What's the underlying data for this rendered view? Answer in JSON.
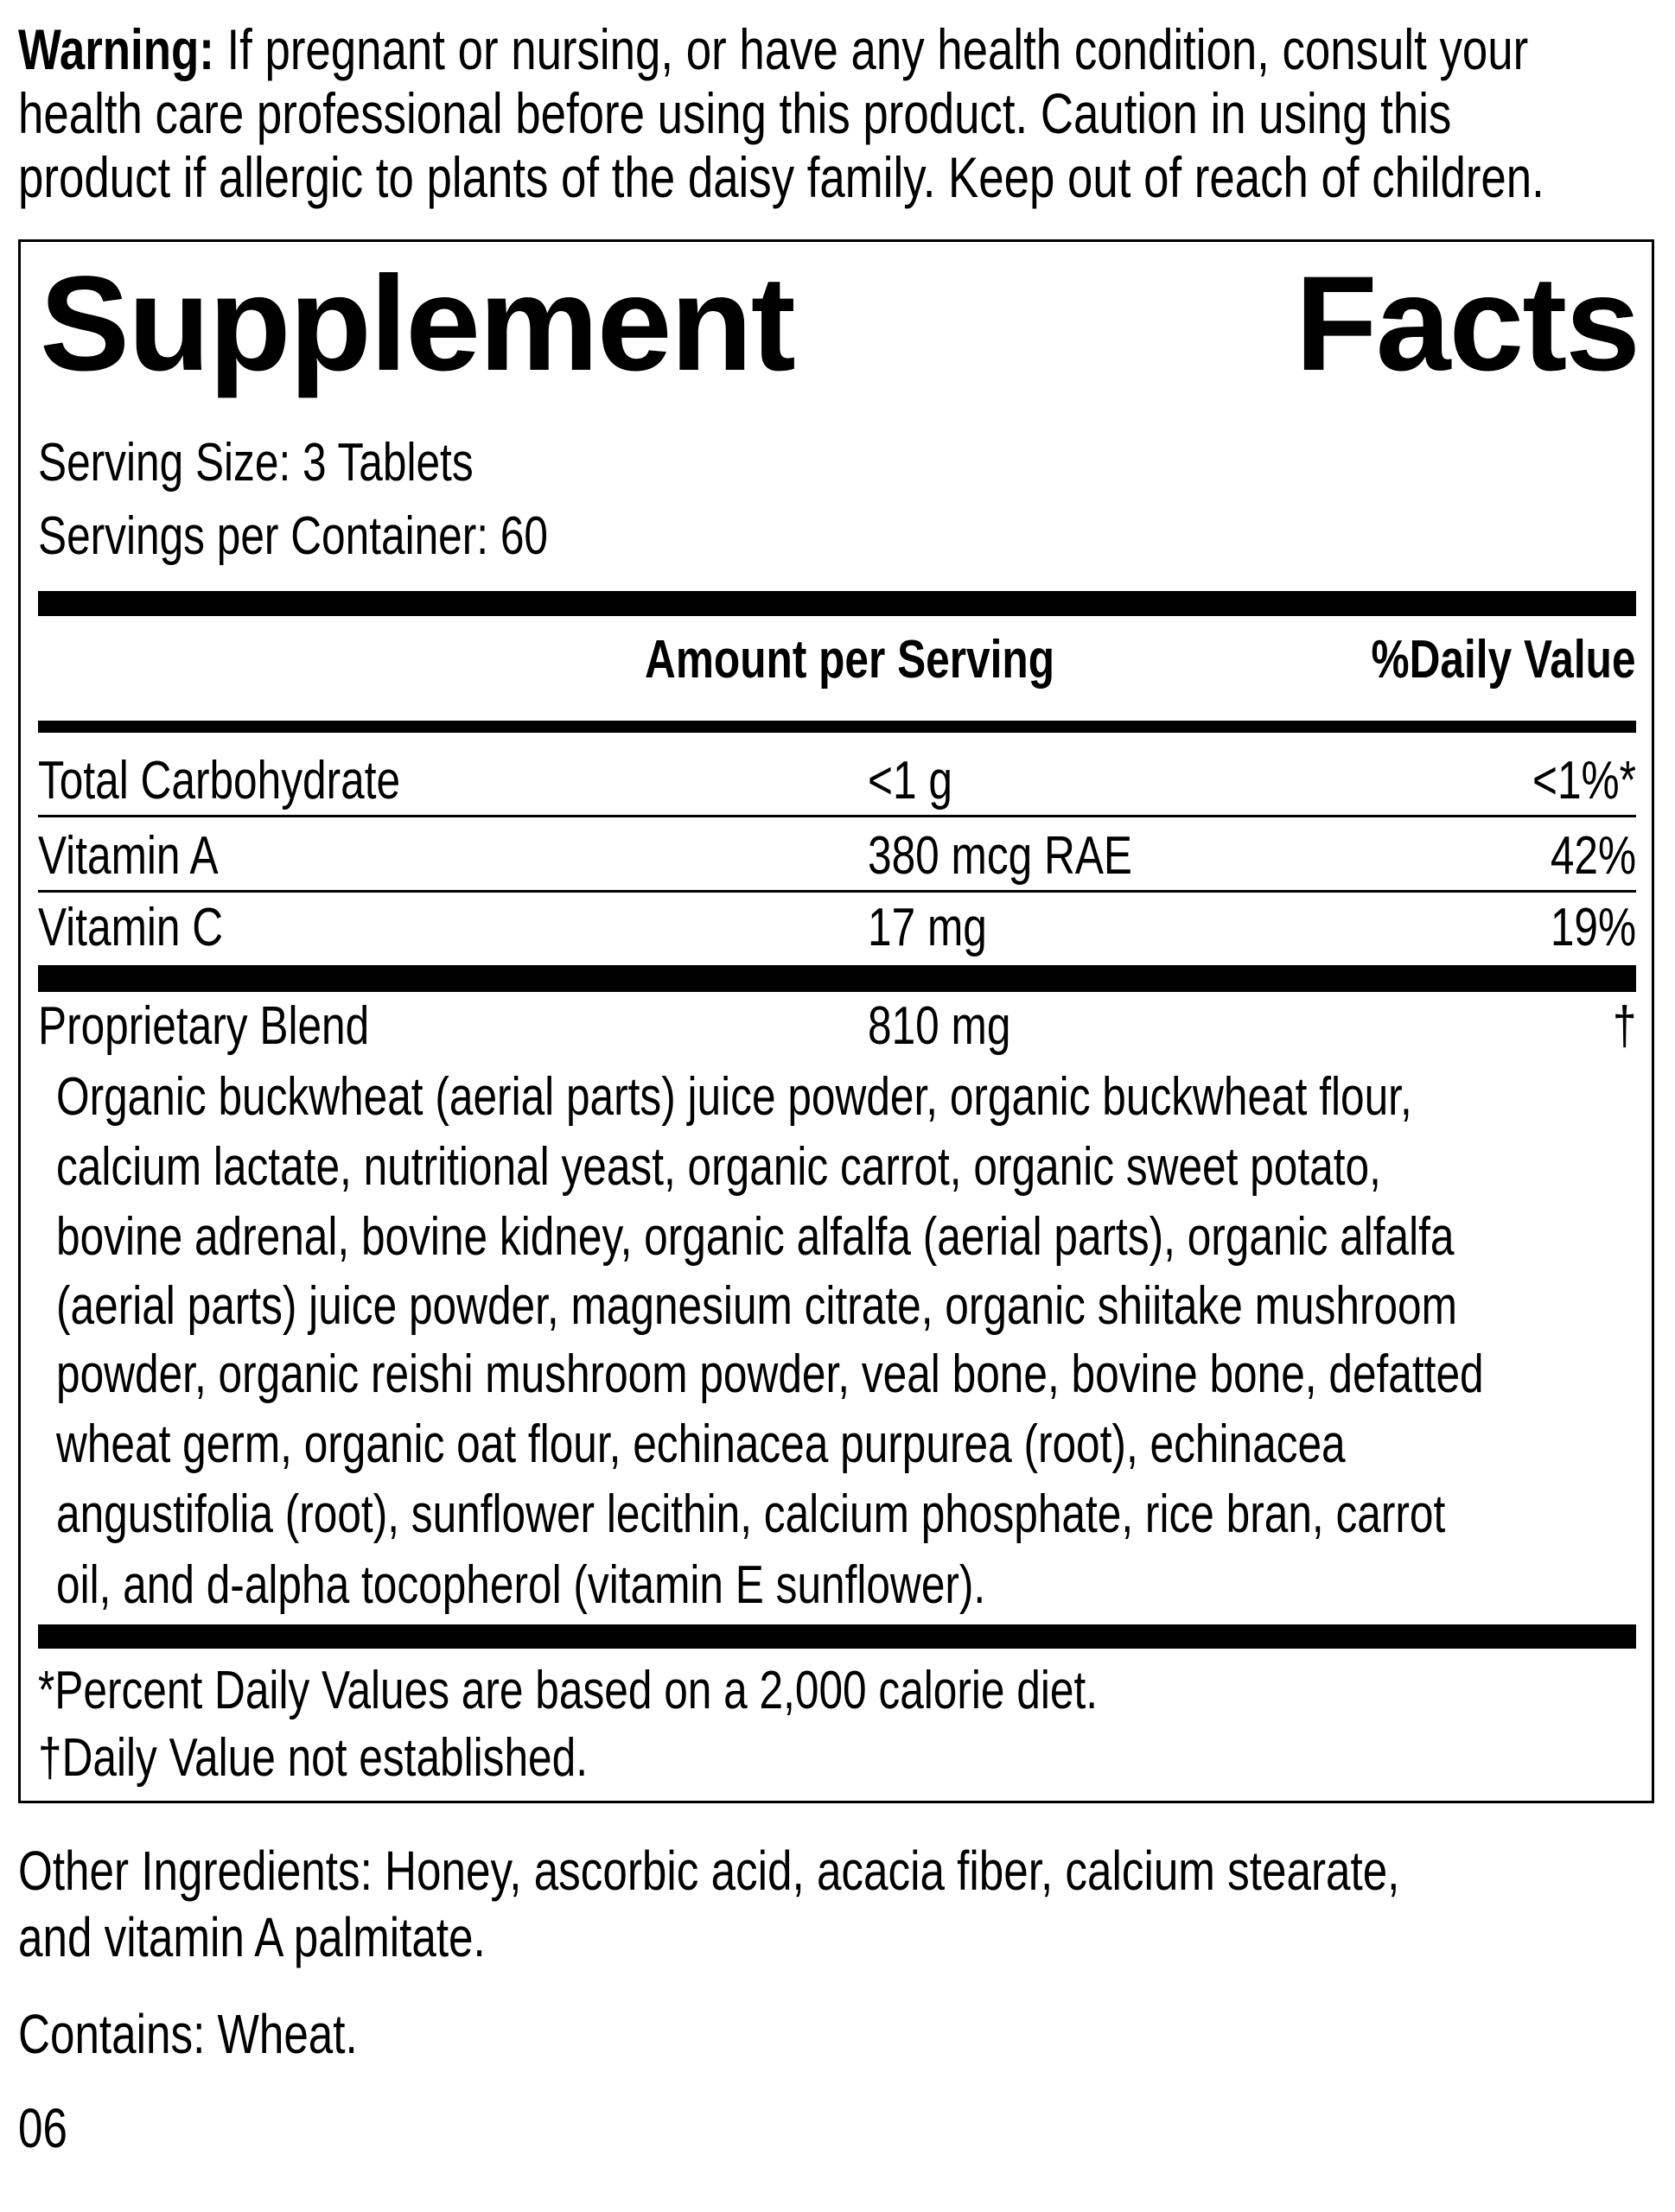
{
  "warning": {
    "label": "Warning:",
    "lines": [
      " If pregnant or nursing, or have any health condition, consult your",
      "health care professional before using this product. Caution in using this",
      "product if allergic to plants of the daisy family. Keep out of reach of children."
    ]
  },
  "facts": {
    "title_word1": "Supplement",
    "title_word2": "Facts",
    "serving_size": "Serving Size: 3 Tablets",
    "servings_per_container": "Servings per Container: 60",
    "col_amount": "Amount per Serving",
    "col_dv": "%Daily Value",
    "rows": [
      {
        "name": "Total Carbohydrate",
        "amount": "<1 g",
        "dv": "<1%*"
      },
      {
        "name": "Vitamin A",
        "amount": "380 mcg RAE",
        "dv": "42%"
      },
      {
        "name": "Vitamin C",
        "amount": "17 mg",
        "dv": "19%"
      }
    ],
    "blend": {
      "name": "Proprietary Blend",
      "amount": "810 mg",
      "dv": "†"
    },
    "blend_ingredients": [
      "Organic buckwheat (aerial parts) juice powder, organic buckwheat flour,",
      "calcium lactate, nutritional yeast, organic carrot, organic sweet potato,",
      "bovine adrenal, bovine kidney, organic alfalfa (aerial parts), organic alfalfa",
      "(aerial parts) juice powder, magnesium citrate, organic shiitake mushroom",
      "powder, organic reishi mushroom powder, veal bone, bovine bone, defatted",
      "wheat germ, organic oat flour, echinacea purpurea (root), echinacea",
      "angustifolia (root), sunflower lecithin, calcium phosphate, rice bran, carrot",
      "oil, and d-alpha tocopherol (vitamin E sunflower)."
    ],
    "footnote_1": "*Percent Daily Values are based on a 2,000 calorie diet.",
    "footnote_2": "†Daily Value not established."
  },
  "other_ingredients": [
    "Other Ingredients: Honey, ascorbic acid, acacia fiber, calcium stearate,",
    "and vitamin A palmitate."
  ],
  "contains": "Contains: Wheat.",
  "code": "06"
}
